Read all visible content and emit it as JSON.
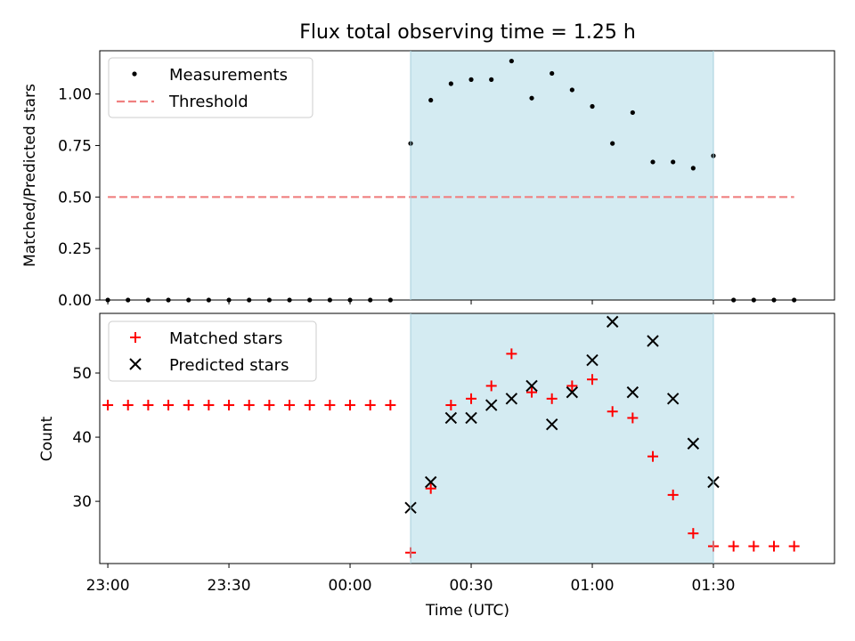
{
  "chart_data": [
    {
      "type": "scatter",
      "title": "Flux total observing time = 1.25 h",
      "xlabel": "",
      "ylabel": "Matched/Predicted stars",
      "ylim": [
        0,
        1.21
      ],
      "xlim": [
        "22:58",
        "02:00"
      ],
      "yticks": [
        "0.00",
        "0.25",
        "0.50",
        "0.75",
        "1.00"
      ],
      "legend_position": "top-left",
      "shaded_interval": [
        "00:15",
        "01:30"
      ],
      "series": [
        {
          "name": "Measurements",
          "marker": "dot",
          "color": "#000000",
          "x": [
            "23:00",
            "23:05",
            "23:10",
            "23:15",
            "23:20",
            "23:25",
            "23:30",
            "23:35",
            "23:40",
            "23:45",
            "23:50",
            "23:55",
            "00:00",
            "00:05",
            "00:10",
            "00:15",
            "00:20",
            "00:25",
            "00:30",
            "00:35",
            "00:40",
            "00:45",
            "00:50",
            "00:55",
            "01:00",
            "01:05",
            "01:10",
            "01:15",
            "01:20",
            "01:25",
            "01:30",
            "01:35",
            "01:40",
            "01:45",
            "01:50"
          ],
          "values": [
            0,
            0,
            0,
            0,
            0,
            0,
            0,
            0,
            0,
            0,
            0,
            0,
            0,
            0,
            0,
            0.76,
            0.97,
            1.05,
            1.07,
            1.07,
            1.16,
            0.98,
            1.1,
            1.02,
            0.94,
            0.76,
            0.91,
            0.67,
            0.67,
            0.64,
            0.7,
            0,
            0,
            0,
            0
          ]
        },
        {
          "name": "Threshold",
          "marker": "dashed-line",
          "color": "#f08080",
          "x": [
            "23:00",
            "01:50"
          ],
          "values": [
            0.5,
            0.5
          ]
        }
      ]
    },
    {
      "type": "scatter",
      "title": "",
      "xlabel": "Time (UTC)",
      "ylabel": "Count",
      "ylim": [
        20.3,
        59.3
      ],
      "xlim": [
        "22:58",
        "02:00"
      ],
      "yticks": [
        "30",
        "40",
        "50"
      ],
      "xticks": [
        "23:00",
        "23:30",
        "00:00",
        "00:30",
        "01:00",
        "01:30"
      ],
      "legend_position": "top-left",
      "shaded_interval": [
        "00:15",
        "01:30"
      ],
      "series": [
        {
          "name": "Matched stars",
          "marker": "plus",
          "color": "#ff0000",
          "x": [
            "23:00",
            "23:05",
            "23:10",
            "23:15",
            "23:20",
            "23:25",
            "23:30",
            "23:35",
            "23:40",
            "23:45",
            "23:50",
            "23:55",
            "00:00",
            "00:05",
            "00:10",
            "00:15",
            "00:20",
            "00:25",
            "00:30",
            "00:35",
            "00:40",
            "00:45",
            "00:50",
            "00:55",
            "01:00",
            "01:05",
            "01:10",
            "01:15",
            "01:20",
            "01:25",
            "01:30",
            "01:35",
            "01:40",
            "01:45",
            "01:50"
          ],
          "values": [
            45,
            45,
            45,
            45,
            45,
            45,
            45,
            45,
            45,
            45,
            45,
            45,
            45,
            45,
            45,
            22,
            32,
            45,
            46,
            48,
            53,
            47,
            46,
            48,
            49,
            44,
            43,
            37,
            31,
            25,
            23,
            23,
            23,
            23,
            23
          ]
        },
        {
          "name": "Predicted stars",
          "marker": "x",
          "color": "#000000",
          "x": [
            "00:15",
            "00:20",
            "00:25",
            "00:30",
            "00:35",
            "00:40",
            "00:45",
            "00:50",
            "00:55",
            "01:00",
            "01:05",
            "01:10",
            "01:15",
            "01:20",
            "01:25",
            "01:30"
          ],
          "values": [
            29,
            33,
            43,
            43,
            45,
            46,
            48,
            42,
            47,
            52,
            58,
            47,
            55,
            46,
            39,
            33
          ]
        }
      ]
    }
  ]
}
